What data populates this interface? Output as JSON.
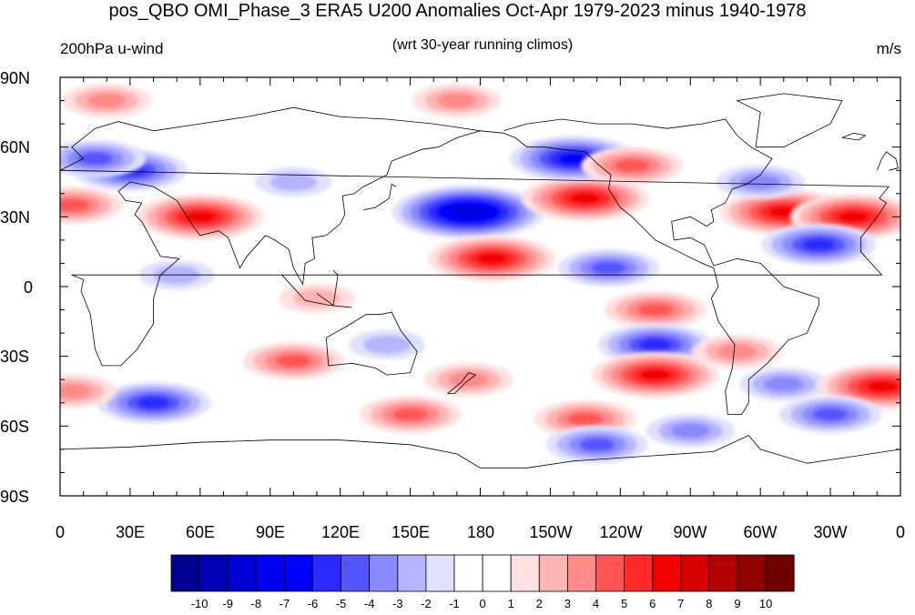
{
  "title": "pos_QBO OMI_Phase_3 ERA5 U200 Anomalies Oct-Apr 1979-2023 minus 1940-1978",
  "left_subtitle": "200hPa u-wind",
  "center_subtitle": "(wrt 30-year running climos)",
  "right_subtitle": "m/s",
  "lat_labels": [
    "90N",
    "60N",
    "30N",
    "0",
    "30S",
    "60S",
    "90S"
  ],
  "lon_labels": [
    "0",
    "30E",
    "60E",
    "90E",
    "120E",
    "150E",
    "180",
    "150W",
    "120W",
    "90W",
    "60W",
    "30W",
    "0"
  ],
  "colorbar": {
    "labels": [
      "-10",
      "-9",
      "-8",
      "-7",
      "-6",
      "-5",
      "-4",
      "-3",
      "-2",
      "-1",
      "0",
      "1",
      "2",
      "3",
      "4",
      "5",
      "6",
      "7",
      "8",
      "9",
      "10"
    ],
    "colors": [
      "#00008f",
      "#0000b4",
      "#0000d6",
      "#0000f0",
      "#0000ff",
      "#2a2aff",
      "#5454ff",
      "#8a8aff",
      "#b4b4ff",
      "#e0e0ff",
      "#ffffff",
      "#ffffff",
      "#ffe0e0",
      "#ffb4b4",
      "#ff8a8a",
      "#ff5454",
      "#ff2a2a",
      "#f00000",
      "#d60000",
      "#b40000",
      "#900000",
      "#700000"
    ]
  },
  "anomaly_centers": [
    {
      "lon": 20,
      "lat": 80,
      "value": 3
    },
    {
      "lon": 170,
      "lat": 80,
      "value": 3
    },
    {
      "lon": 5,
      "lat": 35,
      "value": 4
    },
    {
      "lon": 60,
      "lat": 30,
      "value": 6
    },
    {
      "lon": 30,
      "lat": 50,
      "value": -5
    },
    {
      "lon": 15,
      "lat": 55,
      "value": -4
    },
    {
      "lon": 100,
      "lat": 45,
      "value": -2
    },
    {
      "lon": 175,
      "lat": 32,
      "value": -8
    },
    {
      "lon": 185,
      "lat": 12,
      "value": 6
    },
    {
      "lon": 225,
      "lat": 38,
      "value": 6
    },
    {
      "lon": 220,
      "lat": 55,
      "value": -6
    },
    {
      "lon": 245,
      "lat": 52,
      "value": 4
    },
    {
      "lon": 310,
      "lat": 32,
      "value": 6
    },
    {
      "lon": 340,
      "lat": 30,
      "value": 6
    },
    {
      "lon": 325,
      "lat": 18,
      "value": -5
    },
    {
      "lon": 300,
      "lat": 45,
      "value": -3
    },
    {
      "lon": 235,
      "lat": 8,
      "value": -4
    },
    {
      "lon": 255,
      "lat": -10,
      "value": 4
    },
    {
      "lon": 255,
      "lat": -25,
      "value": -5
    },
    {
      "lon": 255,
      "lat": -38,
      "value": 6
    },
    {
      "lon": 290,
      "lat": -28,
      "value": 3
    },
    {
      "lon": 310,
      "lat": -42,
      "value": -3
    },
    {
      "lon": 352,
      "lat": -43,
      "value": 6
    },
    {
      "lon": 330,
      "lat": -55,
      "value": -4
    },
    {
      "lon": 40,
      "lat": -50,
      "value": -5
    },
    {
      "lon": 5,
      "lat": -45,
      "value": 3
    },
    {
      "lon": 100,
      "lat": -32,
      "value": 4
    },
    {
      "lon": 140,
      "lat": -25,
      "value": -2
    },
    {
      "lon": 175,
      "lat": -40,
      "value": 3
    },
    {
      "lon": 150,
      "lat": -55,
      "value": 4
    },
    {
      "lon": 225,
      "lat": -57,
      "value": 4
    },
    {
      "lon": 230,
      "lat": -68,
      "value": -4
    },
    {
      "lon": 270,
      "lat": -62,
      "value": -3
    },
    {
      "lon": 50,
      "lat": 5,
      "value": -2
    },
    {
      "lon": 110,
      "lat": -5,
      "value": 2
    }
  ]
}
